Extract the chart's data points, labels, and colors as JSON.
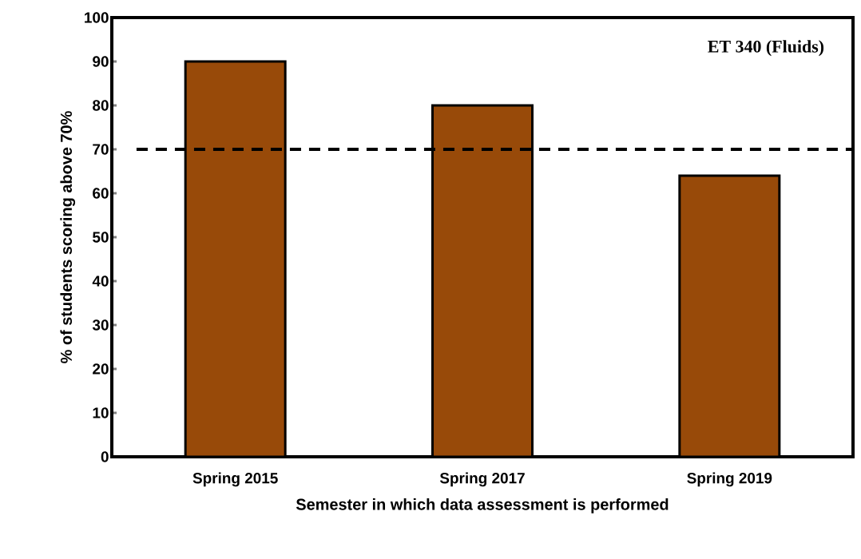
{
  "chart_data": {
    "type": "bar",
    "xlabel": "Semester in which data assessment is performed",
    "ylabel": "% of students  scoring above 70%",
    "categories": [
      "Spring 2015",
      "Spring 2017",
      "Spring 2019"
    ],
    "values": [
      90,
      80,
      64
    ],
    "color": "#984a09",
    "ylim": [
      0,
      100
    ],
    "yticks": [
      0,
      10,
      20,
      30,
      40,
      50,
      60,
      70,
      80,
      90,
      100
    ],
    "grid": false,
    "ref_lines": [
      {
        "axis": "y",
        "value": 70,
        "line_style": "dashed",
        "color": "#000000"
      }
    ],
    "annotations": [
      "ET 340 (Fluids)"
    ]
  }
}
